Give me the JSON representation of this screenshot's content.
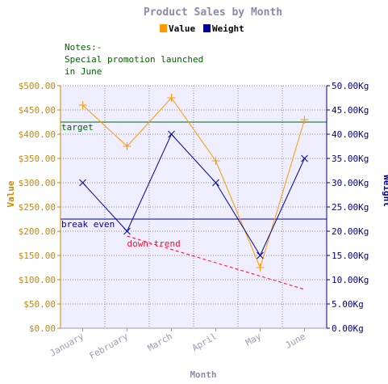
{
  "chart_data": {
    "type": "line",
    "title": "Product Sales by Month",
    "categories": [
      "January",
      "February",
      "March",
      "April",
      "May",
      "June"
    ],
    "series": [
      {
        "name": "Value",
        "axis": "left",
        "color": "#ff9900",
        "marker": "plus",
        "values": [
          460,
          375,
          475,
          345,
          125,
          430
        ]
      },
      {
        "name": "Weight",
        "axis": "right",
        "color": "#000099",
        "marker": "cross",
        "values": [
          30,
          20,
          40,
          30,
          15,
          35
        ]
      }
    ],
    "y_left": {
      "label": "Value",
      "range": [
        0,
        500
      ],
      "ticks": [
        "$0.00",
        "$50.00",
        "$100.00",
        "$150.00",
        "$200.00",
        "$250.00",
        "$300.00",
        "$350.00",
        "$400.00",
        "$450.00",
        "$500.00"
      ],
      "color": "#cc8800"
    },
    "y_right": {
      "label": "Weight",
      "range": [
        0,
        50
      ],
      "ticks": [
        "0.00Kg",
        "5.00Kg",
        "10.00Kg",
        "15.00Kg",
        "20.00Kg",
        "25.00Kg",
        "30.00Kg",
        "35.00Kg",
        "40.00Kg",
        "45.00Kg",
        "50.00Kg"
      ],
      "color": "#000088"
    },
    "xlabel": "Month",
    "grid": true,
    "reference_lines": [
      {
        "label": "target",
        "axis": "left",
        "value": 425,
        "color": "#006600"
      },
      {
        "label": "break even",
        "axis": "left",
        "value": 225,
        "color": "#000099"
      }
    ],
    "trend_line": {
      "label": "down-trend",
      "color": "#ee1133",
      "from": {
        "category": "February",
        "value": 190
      },
      "to": {
        "category": "June",
        "value": 80
      }
    },
    "notes": [
      "Notes:-",
      "Special promotion launched",
      "in June"
    ],
    "legend_position": "top-center",
    "plot_background": "#eeeeff"
  }
}
